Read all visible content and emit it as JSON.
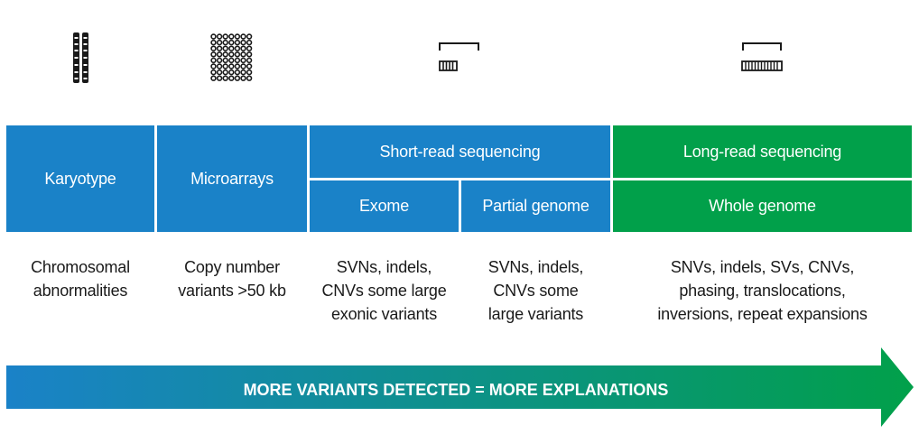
{
  "columns": [
    {
      "header": "Karyotype",
      "description": "Chromosomal\nabnormalities",
      "icon": "chromosome-icon"
    },
    {
      "header": "Microarrays",
      "description": "Copy number\nvariants >50 kb",
      "icon": "microarray-icon"
    },
    {
      "group": "Short-read sequencing",
      "subheaders": [
        "Exome",
        "Partial genome"
      ],
      "descriptions": [
        "SVNs, indels,\nCNVs some large\nexonic variants",
        "SVNs, indels,\nCNVs some\nlarge variants"
      ],
      "icon": "short-read-icon"
    },
    {
      "group": "Long-read sequencing",
      "subheaders": [
        "Whole genome"
      ],
      "descriptions": [
        "SNVs, indels, SVs, CNVs,\nphasing, translocations,\ninversions, repeat expansions"
      ],
      "icon": "long-read-icon"
    }
  ],
  "arrow": {
    "label": "MORE VARIANTS DETECTED = MORE EXPLANATIONS",
    "color_start": "#1a82c8",
    "color_end": "#01a04a"
  },
  "colors": {
    "blue": "#1a82c8",
    "green": "#01a04a"
  }
}
